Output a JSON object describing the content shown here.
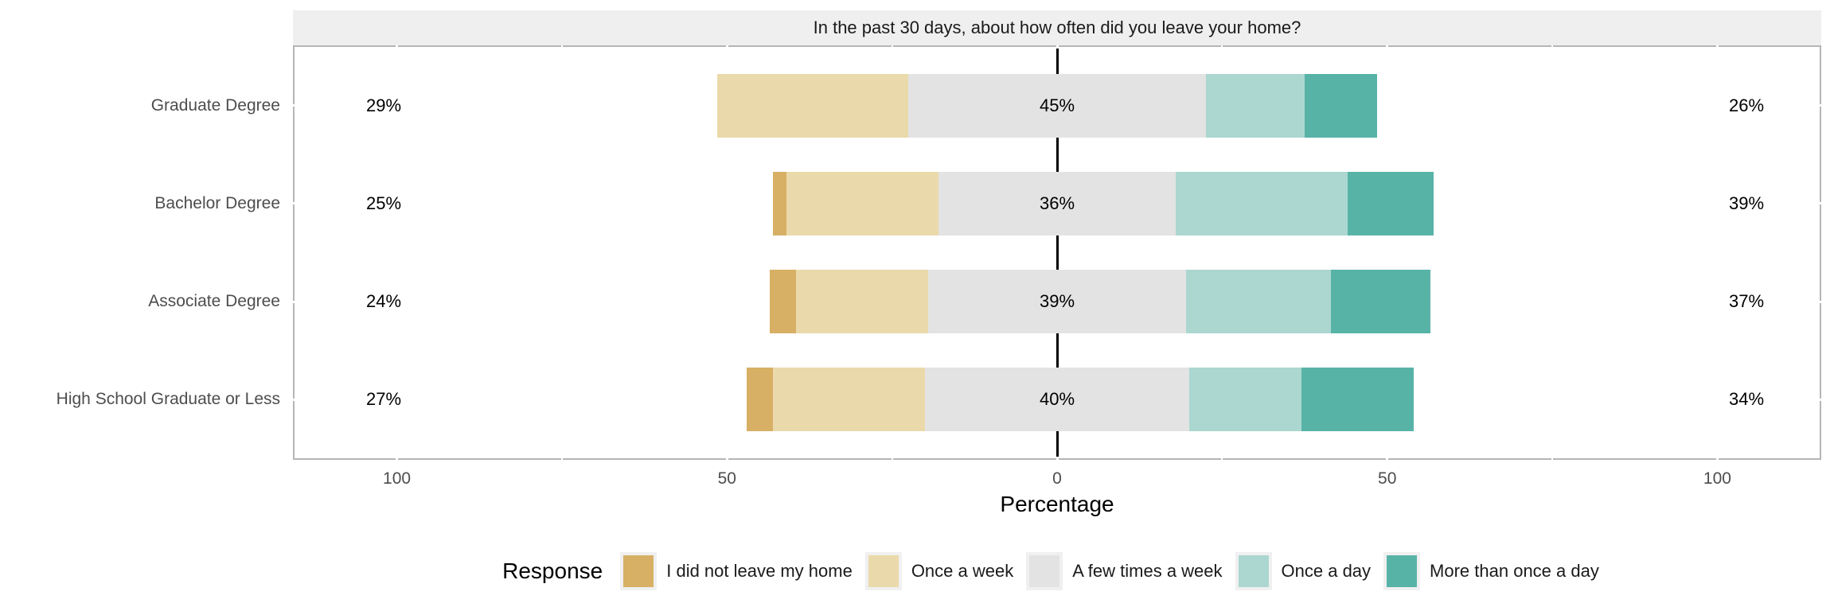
{
  "chart_data": {
    "type": "bar",
    "variant": "diverging-stacked-likert",
    "title": "In the past 30 days, about how often did you leave your home?",
    "xlabel": "Percentage",
    "ylabel": "",
    "legend_title": "Response",
    "legend_position": "bottom",
    "categories": [
      "Graduate Degree",
      "Bachelor Degree",
      "Associate Degree",
      "High School Graduate or Less"
    ],
    "series": [
      {
        "name": "I did not leave my home",
        "color": "#d7b065",
        "values": [
          0,
          2,
          4,
          4
        ]
      },
      {
        "name": "Once a week",
        "color": "#ead9aa",
        "values": [
          29,
          23,
          20,
          23
        ]
      },
      {
        "name": "A few times a week",
        "color": "#e3e3e3",
        "values": [
          45,
          36,
          39,
          40
        ]
      },
      {
        "name": "Once a day",
        "color": "#abd7d0",
        "values": [
          15,
          26,
          22,
          17
        ]
      },
      {
        "name": "More than once a day",
        "color": "#58b3a7",
        "values": [
          11,
          13,
          15,
          17
        ]
      }
    ],
    "center_category": "A few times a week",
    "annotations": {
      "left_totals": [
        "29%",
        "25%",
        "24%",
        "27%"
      ],
      "center_totals": [
        "45%",
        "36%",
        "39%",
        "40%"
      ],
      "right_totals": [
        "26%",
        "39%",
        "37%",
        "34%"
      ]
    },
    "x_axis": {
      "tick_labels": [
        "100",
        "50",
        "0",
        "50",
        "100"
      ],
      "tick_values": [
        -100,
        -50,
        0,
        50,
        100
      ],
      "range": [
        -115.5,
        115.5
      ]
    },
    "zero_line_color": "#000000",
    "grid": "off (white notches at tick positions on panel border)"
  }
}
